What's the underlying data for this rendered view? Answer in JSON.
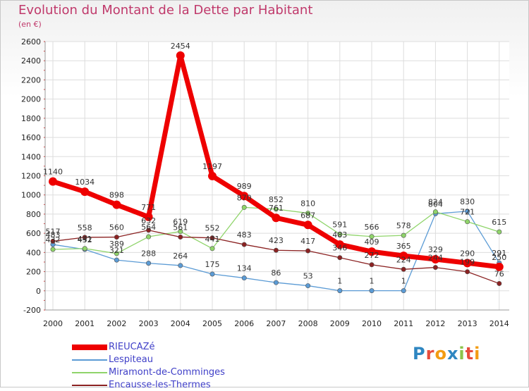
{
  "title": "Evolution du Montant de la Dette par Habitant",
  "subtitle": "(en €)",
  "logo": "Proxiti",
  "chart_data": {
    "type": "line",
    "title": "Evolution du Montant de la Dette par Habitant",
    "subtitle": "(en €)",
    "x": [
      "2000",
      "2001",
      "2002",
      "2003",
      "2004",
      "2005",
      "2006",
      "2007",
      "2008",
      "2009",
      "2010",
      "2011",
      "2012",
      "2013",
      "2014"
    ],
    "ylim": [
      -200,
      2600
    ],
    "yticks": [
      "-200",
      "0",
      "200",
      "400",
      "600",
      "800",
      "1000",
      "1200",
      "1400",
      "1600",
      "1800",
      "2000",
      "2200",
      "2400",
      "2600"
    ],
    "grid": true,
    "legend_position": "bottom-left",
    "series": [
      {
        "name": "RIEUCAZé",
        "color": "#ee0000",
        "values": [
          1140,
          1034,
          898,
          771,
          2454,
          1197,
          989,
          761,
          687,
          483,
          409,
          365,
          329,
          290,
          250
        ]
      },
      {
        "name": "Lespiteau",
        "color": "#5b9bd5",
        "values": [
          483,
          432,
          321,
          288,
          264,
          175,
          134,
          86,
          53,
          1,
          1,
          1,
          804,
          830,
          291
        ]
      },
      {
        "name": "Miramont-de-Comminges",
        "color": "#8fd46a",
        "values": [
          432,
          441,
          389,
          564,
          619,
          441,
          870,
          852,
          810,
          591,
          566,
          578,
          824,
          721,
          615
        ]
      },
      {
        "name": "Encausse-les-Thermes",
        "color": "#8b2222",
        "values": [
          517,
          558,
          560,
          632,
          561,
          552,
          483,
          423,
          417,
          346,
          272,
          224,
          244,
          199,
          76
        ]
      }
    ]
  }
}
